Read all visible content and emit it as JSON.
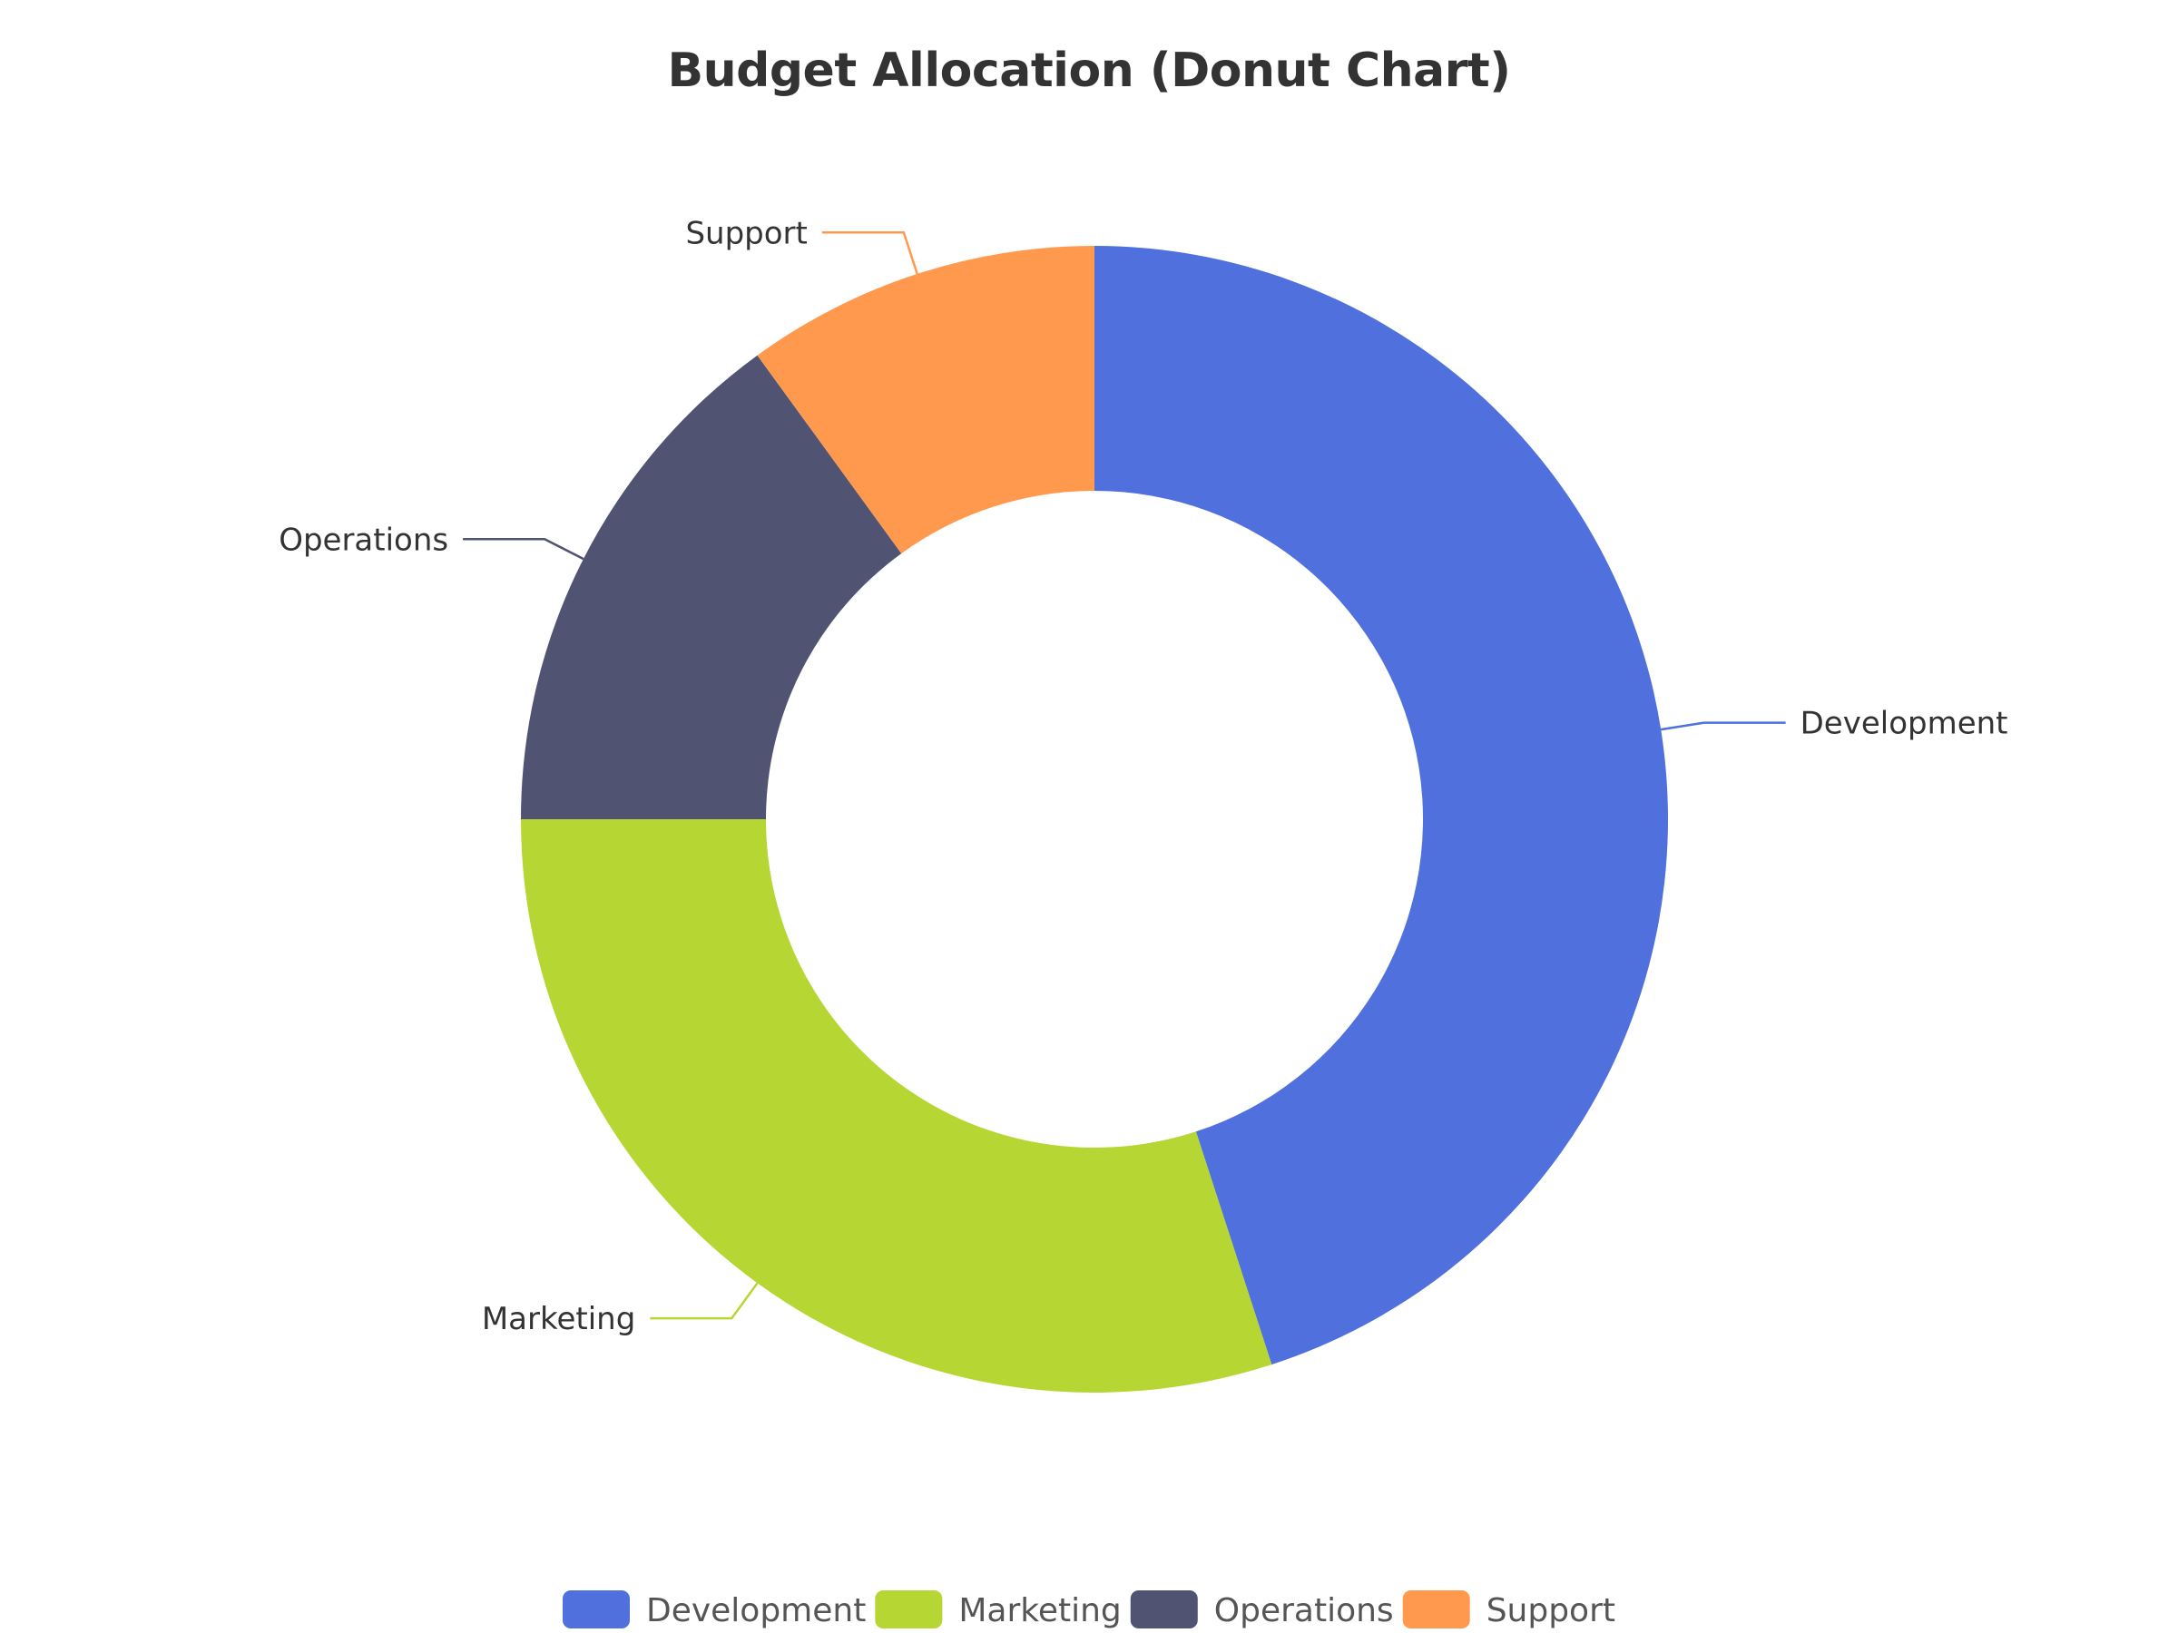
{
  "chart_data": {
    "type": "pie",
    "title": "Budget Allocation (Donut Chart)",
    "donut": true,
    "start_angle_deg": 90,
    "direction": "clockwise",
    "legend_position": "bottom",
    "series": [
      {
        "name": "",
        "slices": [
          {
            "label": "Development",
            "value": 45,
            "color": "#5070dd"
          },
          {
            "label": "Marketing",
            "value": 30,
            "color": "#b6d634"
          },
          {
            "label": "Operations",
            "value": 15,
            "color": "#505372"
          },
          {
            "label": "Support",
            "value": 10,
            "color": "#ff994d"
          }
        ]
      }
    ]
  }
}
